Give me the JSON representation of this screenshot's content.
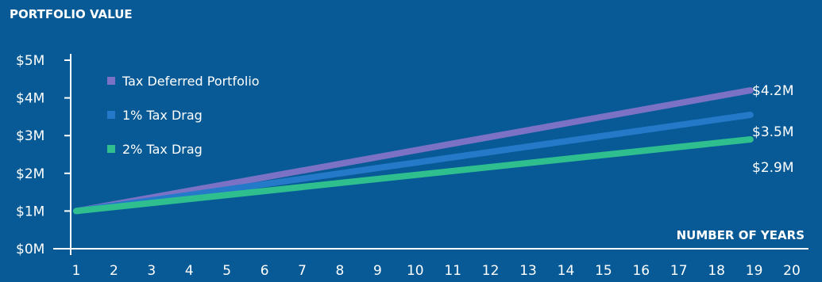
{
  "colors": {
    "background": "#075a95",
    "axis": "#ffffff",
    "series_tax_deferred": "#7b72c6",
    "series_1pct": "#2479c8",
    "series_2pct": "#2fbf8f"
  },
  "chart_data": {
    "type": "line",
    "ylabel": "PORTFOLIO VALUE",
    "xlabel": "NUMBER OF YEARS",
    "ylim": [
      0,
      5
    ],
    "xlim": [
      1,
      20
    ],
    "yticks": [
      "$0M",
      "$1M",
      "$2M",
      "$3M",
      "$4M",
      "$5M"
    ],
    "ytick_values": [
      0,
      1,
      2,
      3,
      4,
      5
    ],
    "xticks": [
      "1",
      "2",
      "3",
      "4",
      "5",
      "6",
      "7",
      "8",
      "9",
      "10",
      "11",
      "12",
      "13",
      "14",
      "15",
      "16",
      "17",
      "18",
      "19",
      "20"
    ],
    "xtick_values": [
      1,
      2,
      3,
      4,
      5,
      6,
      7,
      8,
      9,
      10,
      11,
      12,
      13,
      14,
      15,
      16,
      17,
      18,
      19,
      20
    ],
    "grid": false,
    "legend_position": "top-left",
    "series": [
      {
        "name": "Tax Deferred Portfolio",
        "color": "#7b72c6",
        "x": [
          1,
          18.9
        ],
        "values": [
          1.0,
          4.2
        ],
        "end_label": "$4.2M"
      },
      {
        "name": "1% Tax Drag",
        "color": "#2479c8",
        "x": [
          1,
          18.9
        ],
        "values": [
          1.0,
          3.55
        ],
        "end_label": "$3.5M"
      },
      {
        "name": "2% Tax Drag",
        "color": "#2fbf8f",
        "x": [
          1,
          18.9
        ],
        "values": [
          1.0,
          2.9
        ],
        "end_label": "$2.9M"
      }
    ]
  }
}
